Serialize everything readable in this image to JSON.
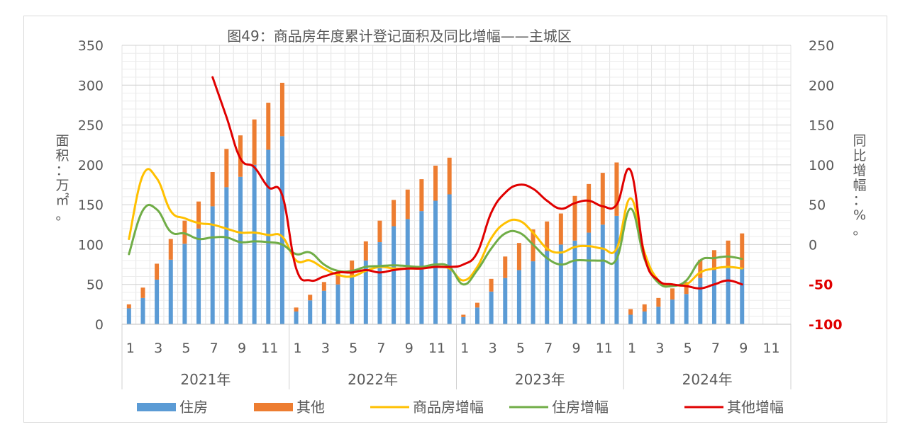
{
  "chart_data": {
    "type": "bar",
    "title": "图49：商品房年度累计登记面积及同比增幅——主城区",
    "ylabel_left": "面积：万㎡。",
    "ylabel_right": "同比增幅：%。",
    "y_left": {
      "min": 0,
      "max": 350,
      "step": 50,
      "ticks": [
        "0",
        "50",
        "100",
        "150",
        "200",
        "250",
        "300",
        "350"
      ]
    },
    "y_right": {
      "min": -100,
      "max": 250,
      "step": 50,
      "ticks": [
        "-100",
        "-50",
        "0",
        "50",
        "100",
        "150",
        "200",
        "250"
      ],
      "red_ticks": [
        "-50",
        "-100"
      ],
      "red_color": "#e00000"
    },
    "years": [
      "2021年",
      "2022年",
      "2023年",
      "2024年"
    ],
    "months_per_year": 12,
    "month_tick_labels": [
      "1",
      "3",
      "5",
      "7",
      "9",
      "11"
    ],
    "grid": true,
    "legend_position": "bottom",
    "series": [
      {
        "name": "住房",
        "kind": "bar",
        "color": "#5b9bd5",
        "values": [
          20,
          33,
          56,
          81,
          101,
          120,
          148,
          172,
          185,
          200,
          219,
          236,
          16,
          30,
          42,
          50,
          60,
          80,
          103,
          123,
          132,
          142,
          155,
          163,
          9,
          21,
          41,
          58,
          68,
          79,
          92,
          100,
          105,
          115,
          125,
          136,
          12,
          16,
          22,
          31,
          38,
          58,
          68,
          72,
          70,
          null,
          null,
          null
        ]
      },
      {
        "name": "其他",
        "kind": "bar_stack",
        "color": "#ed7d31",
        "values": [
          5,
          13,
          20,
          26,
          29,
          34,
          43,
          48,
          52,
          57,
          59,
          67,
          5,
          7,
          11,
          16,
          20,
          24,
          27,
          33,
          37,
          40,
          44,
          46,
          3,
          6,
          16,
          27,
          34,
          40,
          37,
          39,
          56,
          61,
          65,
          67,
          7,
          9,
          11,
          14,
          15,
          23,
          25,
          33,
          44,
          null,
          null,
          null
        ]
      },
      {
        "name": "商品房增幅",
        "kind": "line",
        "axis": "right",
        "color": "#ffc000",
        "values": [
          7,
          87,
          83,
          42,
          33,
          27,
          25,
          20,
          15,
          15,
          12,
          10,
          -20,
          -20,
          -30,
          -38,
          -40,
          -33,
          -28,
          -30,
          -30,
          -30,
          -28,
          -30,
          -45,
          -28,
          8,
          27,
          30,
          15,
          -5,
          -10,
          -3,
          -2,
          -5,
          -5,
          58,
          -10,
          -45,
          -50,
          -50,
          -35,
          -30,
          -28,
          -30,
          null,
          null,
          null
        ]
      },
      {
        "name": "住房增幅",
        "kind": "line",
        "axis": "right",
        "color": "#70ad47",
        "values": [
          -12,
          43,
          44,
          16,
          14,
          7,
          9,
          9,
          3,
          4,
          3,
          0,
          -12,
          -10,
          -25,
          -33,
          -33,
          -28,
          -27,
          -26,
          -27,
          -28,
          -25,
          -28,
          -50,
          -32,
          -5,
          14,
          15,
          0,
          -17,
          -25,
          -20,
          -20,
          -20,
          -18,
          45,
          -18,
          -48,
          -52,
          -45,
          -20,
          -17,
          -15,
          -18,
          null,
          null,
          null
        ]
      },
      {
        "name": "其他增幅",
        "kind": "line",
        "axis": "right",
        "color": "#e00000",
        "values": [
          null,
          null,
          null,
          null,
          null,
          null,
          210,
          160,
          108,
          97,
          72,
          62,
          -30,
          -45,
          -40,
          -35,
          -35,
          -32,
          -35,
          -32,
          -30,
          -30,
          -28,
          -28,
          -25,
          -10,
          40,
          65,
          75,
          70,
          55,
          45,
          52,
          55,
          48,
          50,
          93,
          -15,
          -45,
          -50,
          -52,
          -55,
          -50,
          -45,
          -50,
          null,
          null,
          null
        ]
      }
    ]
  }
}
